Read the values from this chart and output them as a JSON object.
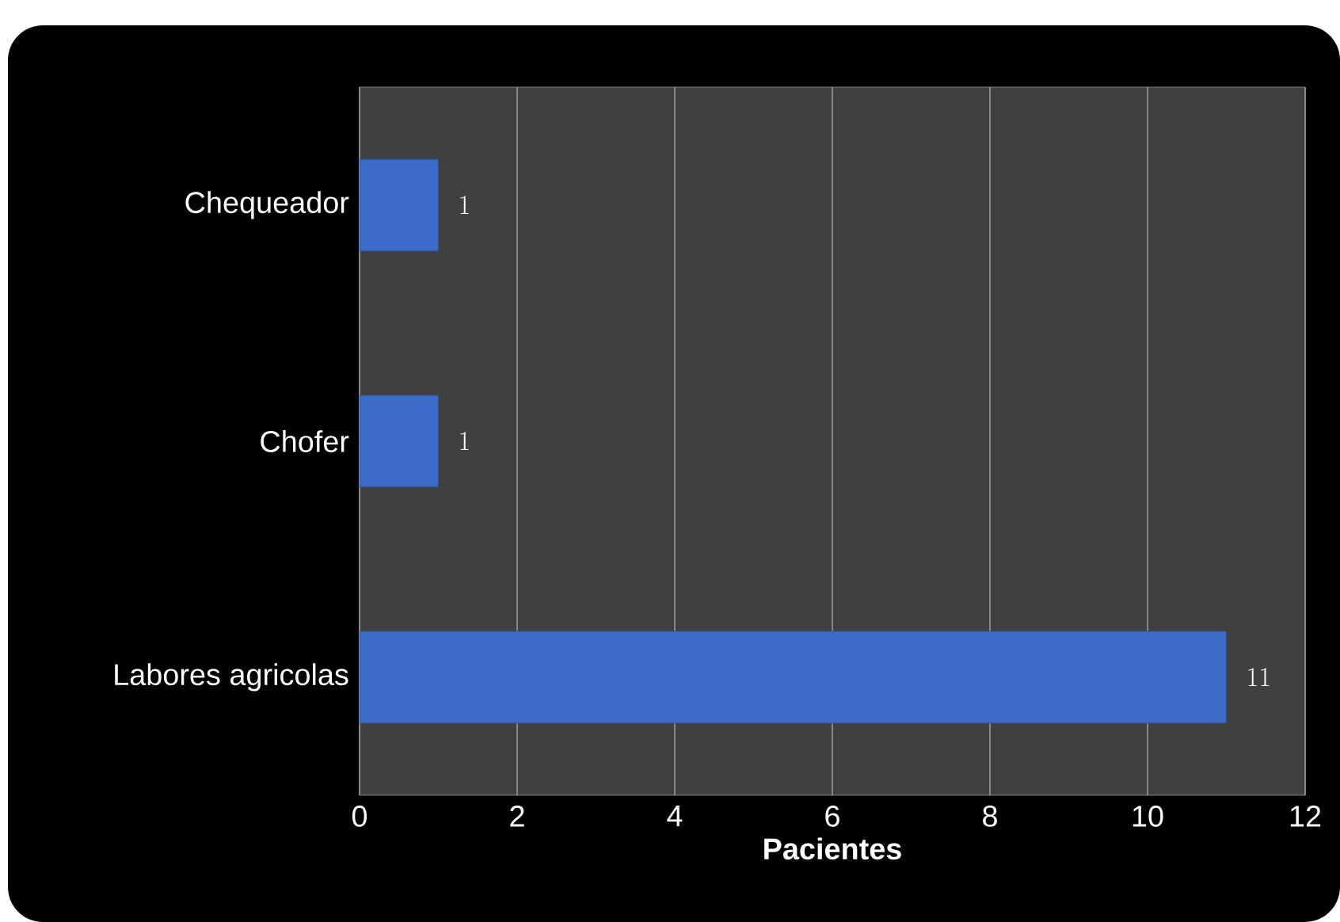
{
  "chart_data": {
    "type": "bar",
    "orientation": "horizontal",
    "categories": [
      "Chequeador",
      "Chofer",
      "Labores agricolas"
    ],
    "values": [
      1,
      1,
      11
    ],
    "color": "#3c6bc8",
    "xlabel": "**Pacientes**",
    "xlim": [
      0,
      12
    ],
    "xticks": [
      0,
      2,
      4,
      6,
      8,
      10,
      12
    ],
    "grid": "x",
    "data_labels": true
  }
}
